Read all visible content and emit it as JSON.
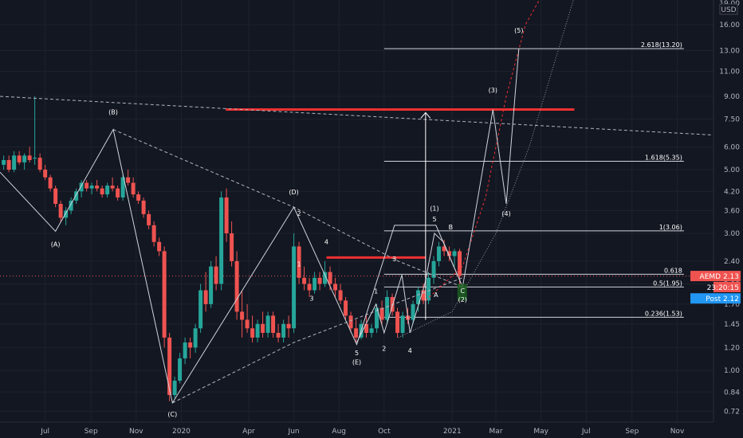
{
  "chart_data": {
    "type": "candlestick",
    "symbol": "AEMD",
    "currency": "USD",
    "y_scale": "log",
    "ylim": [
      0.66,
      19.5
    ],
    "y_ticks": [
      0.72,
      0.84,
      1.0,
      1.2,
      1.45,
      1.7,
      2.0,
      2.4,
      3.0,
      3.6,
      4.2,
      5.0,
      6.0,
      7.5,
      9.0,
      11.0,
      13.0,
      16.0
    ],
    "y_tick_labels": [
      "0.72",
      "0.84",
      "1.00",
      "1.20",
      "1.45",
      "1.70",
      "2.00",
      "2.40",
      "3.00",
      "3.60",
      "4.20",
      "5.00",
      "6.00",
      "7.50",
      "9.00",
      "11.00",
      "13.00",
      "16.00"
    ],
    "top_tick_label": "19.00",
    "x_range": [
      "2019-05-01",
      "2021-12-20"
    ],
    "x_ticks": [
      {
        "date": "2019-07-01",
        "label": "Jul"
      },
      {
        "date": "2019-09-01",
        "label": "Sep"
      },
      {
        "date": "2019-11-01",
        "label": "Nov"
      },
      {
        "date": "2020-01-01",
        "label": "2020"
      },
      {
        "date": "2020-04-01",
        "label": "Apr"
      },
      {
        "date": "2020-06-01",
        "label": "Jun"
      },
      {
        "date": "2020-08-01",
        "label": "Aug"
      },
      {
        "date": "2020-10-01",
        "label": "Oct"
      },
      {
        "date": "2021-01-01",
        "label": "2021"
      },
      {
        "date": "2021-03-01",
        "label": "Mar"
      },
      {
        "date": "2021-05-01",
        "label": "May"
      },
      {
        "date": "2021-07-01",
        "label": "Jul"
      },
      {
        "date": "2021-09-01",
        "label": "Sep"
      },
      {
        "date": "2021-11-01",
        "label": "Nov"
      }
    ],
    "candles": [
      [
        "2019-05-06",
        5.2,
        5.6,
        5.0,
        5.4
      ],
      [
        "2019-05-13",
        5.4,
        5.6,
        4.9,
        5.0
      ],
      [
        "2019-05-20",
        5.0,
        5.8,
        4.9,
        5.6
      ],
      [
        "2019-05-27",
        5.6,
        5.8,
        5.2,
        5.3
      ],
      [
        "2019-06-03",
        5.3,
        5.7,
        5.0,
        5.6
      ],
      [
        "2019-06-10",
        5.6,
        6.0,
        5.3,
        5.4
      ],
      [
        "2019-06-17",
        5.5,
        9.0,
        5.2,
        5.5
      ],
      [
        "2019-06-24",
        5.5,
        5.7,
        4.9,
        5.0
      ],
      [
        "2019-07-01",
        5.0,
        5.2,
        4.6,
        4.7
      ],
      [
        "2019-07-08",
        4.7,
        4.8,
        4.2,
        4.3
      ],
      [
        "2019-07-15",
        4.3,
        4.4,
        3.7,
        3.8
      ],
      [
        "2019-07-22",
        3.8,
        3.9,
        3.3,
        3.4
      ],
      [
        "2019-07-29",
        3.4,
        3.7,
        3.2,
        3.6
      ],
      [
        "2019-08-05",
        3.6,
        4.0,
        3.5,
        3.9
      ],
      [
        "2019-08-12",
        3.9,
        4.3,
        3.8,
        4.2
      ],
      [
        "2019-08-19",
        4.2,
        4.6,
        4.0,
        4.5
      ],
      [
        "2019-08-26",
        4.5,
        4.6,
        4.2,
        4.3
      ],
      [
        "2019-09-02",
        4.3,
        4.5,
        4.1,
        4.4
      ],
      [
        "2019-09-09",
        4.4,
        4.6,
        4.2,
        4.3
      ],
      [
        "2019-09-16",
        4.3,
        4.4,
        4.0,
        4.1
      ],
      [
        "2019-09-23",
        4.1,
        4.5,
        4.0,
        4.4
      ],
      [
        "2019-09-30",
        4.4,
        4.7,
        4.2,
        4.3
      ],
      [
        "2019-10-07",
        4.3,
        4.4,
        3.9,
        4.0
      ],
      [
        "2019-10-14",
        4.0,
        4.8,
        3.9,
        4.7
      ],
      [
        "2019-10-21",
        4.7,
        5.0,
        4.4,
        4.5
      ],
      [
        "2019-10-28",
        4.5,
        4.7,
        4.0,
        4.1
      ],
      [
        "2019-11-04",
        4.1,
        4.2,
        3.8,
        3.9
      ],
      [
        "2019-11-11",
        3.9,
        4.0,
        3.4,
        3.5
      ],
      [
        "2019-11-18",
        3.5,
        3.6,
        3.1,
        3.2
      ],
      [
        "2019-11-25",
        3.2,
        3.3,
        2.7,
        2.8
      ],
      [
        "2019-12-02",
        2.8,
        2.9,
        2.5,
        2.6
      ],
      [
        "2019-12-09",
        2.6,
        2.7,
        1.2,
        1.3
      ],
      [
        "2019-12-16",
        1.3,
        1.35,
        0.78,
        0.82
      ],
      [
        "2019-12-23",
        0.82,
        0.95,
        0.8,
        0.92
      ],
      [
        "2019-12-30",
        0.92,
        1.15,
        0.9,
        1.1
      ],
      [
        "2020-01-06",
        1.1,
        1.3,
        1.05,
        1.25
      ],
      [
        "2020-01-13",
        1.25,
        1.3,
        1.1,
        1.2
      ],
      [
        "2020-01-20",
        1.2,
        1.45,
        1.15,
        1.4
      ],
      [
        "2020-01-27",
        1.4,
        2.0,
        1.35,
        1.9
      ],
      [
        "2020-02-03",
        1.9,
        2.2,
        1.6,
        1.7
      ],
      [
        "2020-02-10",
        1.7,
        2.4,
        1.65,
        2.3
      ],
      [
        "2020-02-17",
        2.3,
        2.5,
        1.9,
        2.0
      ],
      [
        "2020-02-24",
        2.0,
        4.2,
        1.9,
        4.0
      ],
      [
        "2020-03-02",
        4.0,
        4.3,
        2.8,
        3.0
      ],
      [
        "2020-03-09",
        3.0,
        3.3,
        2.3,
        2.4
      ],
      [
        "2020-03-16",
        2.4,
        2.6,
        1.5,
        1.6
      ],
      [
        "2020-03-23",
        1.6,
        1.9,
        1.3,
        1.5
      ],
      [
        "2020-03-30",
        1.5,
        1.7,
        1.35,
        1.4
      ],
      [
        "2020-04-06",
        1.4,
        1.55,
        1.25,
        1.3
      ],
      [
        "2020-04-13",
        1.3,
        1.5,
        1.25,
        1.45
      ],
      [
        "2020-04-20",
        1.45,
        1.6,
        1.3,
        1.35
      ],
      [
        "2020-04-27",
        1.35,
        1.6,
        1.3,
        1.55
      ],
      [
        "2020-05-04",
        1.55,
        1.6,
        1.3,
        1.35
      ],
      [
        "2020-05-11",
        1.35,
        1.45,
        1.25,
        1.3
      ],
      [
        "2020-05-18",
        1.3,
        1.5,
        1.25,
        1.45
      ],
      [
        "2020-05-25",
        1.45,
        1.55,
        1.3,
        1.4
      ],
      [
        "2020-06-01",
        1.4,
        3.0,
        1.35,
        2.7
      ],
      [
        "2020-06-08",
        2.7,
        2.8,
        2.0,
        2.1
      ],
      [
        "2020-06-15",
        2.1,
        2.3,
        1.9,
        2.0
      ],
      [
        "2020-06-22",
        2.0,
        2.1,
        1.8,
        1.9
      ],
      [
        "2020-06-29",
        1.9,
        2.2,
        1.85,
        2.1
      ],
      [
        "2020-07-06",
        2.1,
        2.2,
        1.9,
        2.0
      ],
      [
        "2020-07-13",
        2.0,
        2.4,
        1.95,
        2.2
      ],
      [
        "2020-07-20",
        2.2,
        2.3,
        1.9,
        2.0
      ],
      [
        "2020-07-27",
        2.0,
        2.1,
        1.8,
        1.9
      ],
      [
        "2020-08-03",
        1.9,
        2.0,
        1.7,
        1.75
      ],
      [
        "2020-08-10",
        1.75,
        1.8,
        1.5,
        1.55
      ],
      [
        "2020-08-17",
        1.55,
        1.6,
        1.35,
        1.4
      ],
      [
        "2020-08-24",
        1.4,
        1.5,
        1.25,
        1.3
      ],
      [
        "2020-08-31",
        1.3,
        1.5,
        1.28,
        1.45
      ],
      [
        "2020-09-07",
        1.45,
        1.55,
        1.3,
        1.35
      ],
      [
        "2020-09-14",
        1.35,
        1.45,
        1.3,
        1.4
      ],
      [
        "2020-09-21",
        1.4,
        1.7,
        1.35,
        1.65
      ],
      [
        "2020-09-28",
        1.65,
        1.75,
        1.45,
        1.5
      ],
      [
        "2020-10-05",
        1.5,
        1.9,
        1.45,
        1.8
      ],
      [
        "2020-10-12",
        1.8,
        1.85,
        1.55,
        1.6
      ],
      [
        "2020-10-19",
        1.6,
        1.65,
        1.3,
        1.35
      ],
      [
        "2020-10-26",
        1.35,
        1.6,
        1.3,
        1.55
      ],
      [
        "2020-11-02",
        1.55,
        1.65,
        1.45,
        1.5
      ],
      [
        "2020-11-09",
        1.5,
        1.75,
        1.45,
        1.7
      ],
      [
        "2020-11-16",
        1.7,
        1.95,
        1.6,
        1.9
      ],
      [
        "2020-11-23",
        1.9,
        2.0,
        1.7,
        1.75
      ],
      [
        "2020-11-30",
        1.75,
        2.2,
        1.7,
        2.1
      ],
      [
        "2020-12-07",
        2.1,
        2.5,
        2.0,
        2.4
      ],
      [
        "2020-12-14",
        2.4,
        2.8,
        2.3,
        2.7
      ],
      [
        "2020-12-21",
        2.7,
        2.85,
        2.5,
        2.6
      ],
      [
        "2020-12-28",
        2.6,
        2.7,
        2.4,
        2.5
      ],
      [
        "2021-01-04",
        2.5,
        2.65,
        2.3,
        2.6
      ],
      [
        "2021-01-11",
        2.6,
        2.65,
        1.95,
        2.13
      ]
    ],
    "resistance_lines": [
      {
        "start": [
          "2020-03-01",
          8.1
        ],
        "end": [
          "2021-06-15",
          8.1
        ],
        "color": "#ef3030"
      },
      {
        "start": [
          "2020-07-15",
          2.47
        ],
        "end": [
          "2020-11-26",
          2.47
        ],
        "color": "#ef3030"
      }
    ],
    "fib_levels": [
      {
        "label": "2.618(13.20)",
        "value": 13.2,
        "from": "2020-10-01",
        "to": "2021-11-10"
      },
      {
        "label": "1.618(5.35)",
        "value": 5.35,
        "from": "2020-10-01",
        "to": "2021-11-10"
      },
      {
        "label": "1(3.06)",
        "value": 3.06,
        "from": "2020-10-01",
        "to": "2021-11-10"
      },
      {
        "label": "0.618",
        "value": 2.16,
        "from": "2020-10-01",
        "to": "2021-11-10"
      },
      {
        "label": "0.5(1.95)",
        "value": 1.95,
        "from": "2020-10-01",
        "to": "2021-11-10"
      },
      {
        "label": "0.236(1.53)",
        "value": 1.53,
        "from": "2020-10-01",
        "to": "2021-11-10"
      }
    ],
    "trend_lines": [
      {
        "points": [
          [
            "2019-05-01",
            9.0
          ],
          [
            "2021-12-20",
            6.6
          ]
        ],
        "style": "dashed"
      },
      {
        "points": [
          [
            "2019-10-01",
            6.9
          ],
          [
            "2020-06-01",
            3.7
          ],
          [
            "2020-10-20",
            2.4
          ],
          [
            "2021-01-15",
            1.95
          ]
        ],
        "style": "dashed"
      },
      {
        "points": [
          [
            "2019-12-20",
            0.77
          ],
          [
            "2020-06-01",
            1.25
          ],
          [
            "2021-01-15",
            2.1
          ]
        ],
        "style": "dashed"
      }
    ],
    "wave_path": [
      [
        "2019-05-01",
        4.9
      ],
      [
        "2019-07-15",
        3.05
      ],
      [
        "2019-10-01",
        6.9
      ],
      [
        "2019-12-20",
        0.77
      ],
      [
        "2020-06-01",
        3.7
      ],
      [
        "2020-08-25",
        1.23
      ],
      [
        "2020-10-15",
        3.2
      ],
      [
        "2020-12-10",
        3.2
      ],
      [
        "2021-01-15",
        1.95
      ],
      [
        "2021-02-25",
        8.1
      ],
      [
        "2021-03-15",
        3.8
      ],
      [
        "2021-04-01",
        13.2
      ]
    ],
    "sub_wave_path": [
      [
        "2020-08-25",
        1.25
      ],
      [
        "2020-09-20",
        1.7
      ],
      [
        "2020-10-01",
        1.35
      ],
      [
        "2020-10-25",
        2.15
      ],
      [
        "2020-11-05",
        1.35
      ],
      [
        "2020-11-25",
        2.0
      ],
      [
        "2020-12-08",
        3.0
      ],
      [
        "2020-12-20",
        2.8
      ],
      [
        "2021-01-15",
        1.95
      ]
    ],
    "projection_arrow": {
      "from": [
        "2020-11-26",
        1.5
      ],
      "to": [
        "2020-11-26",
        7.9
      ]
    },
    "curve_red": [
      [
        "2020-11-26",
        1.75
      ],
      [
        "2021-01-15",
        2.3
      ],
      [
        "2021-02-15",
        4.0
      ],
      [
        "2021-03-15",
        9.0
      ],
      [
        "2021-04-10",
        16.0
      ],
      [
        "2021-05-01",
        20.0
      ]
    ],
    "curve_gray": [
      [
        "2020-10-20",
        1.3
      ],
      [
        "2021-01-01",
        1.6
      ],
      [
        "2021-03-01",
        3.0
      ],
      [
        "2021-04-15",
        6.0
      ],
      [
        "2021-05-20",
        12.0
      ],
      [
        "2021-06-15",
        20.0
      ]
    ],
    "wave_labels": [
      {
        "text": "(A)",
        "x": "2019-07-15",
        "y": 2.7
      },
      {
        "text": "(B)",
        "x": "2019-10-01",
        "y": 7.8
      },
      {
        "text": "(C)",
        "x": "2019-12-20",
        "y": 0.69
      },
      {
        "text": "(D)",
        "x": "2020-06-01",
        "y": 4.1
      },
      {
        "text": "2",
        "x": "2020-06-08",
        "y": 3.45
      },
      {
        "text": "1",
        "x": "2020-06-08",
        "y": 2.3
      },
      {
        "text": "3",
        "x": "2020-06-25",
        "y": 1.75
      },
      {
        "text": "4",
        "x": "2020-07-15",
        "y": 2.75
      },
      {
        "text": "5",
        "x": "2020-08-25",
        "y": 1.13
      },
      {
        "text": "(E)",
        "x": "2020-08-25",
        "y": 1.05
      },
      {
        "text": "1",
        "x": "2020-09-20",
        "y": 1.85
      },
      {
        "text": "2",
        "x": "2020-10-01",
        "y": 1.17
      },
      {
        "text": "3",
        "x": "2020-10-15",
        "y": 2.4
      },
      {
        "text": "4",
        "x": "2020-11-05",
        "y": 1.15
      },
      {
        "text": "(1)",
        "x": "2020-12-08",
        "y": 3.6
      },
      {
        "text": "5",
        "x": "2020-12-08",
        "y": 3.3
      },
      {
        "text": "A",
        "x": "2020-12-10",
        "y": 1.8
      },
      {
        "text": "B",
        "x": "2020-12-30",
        "y": 3.1
      },
      {
        "text": "C",
        "x": "2021-01-15",
        "y": 1.86
      },
      {
        "text": "(2)",
        "x": "2021-01-15",
        "y": 1.73
      },
      {
        "text": "(3)",
        "x": "2021-02-25",
        "y": 9.3
      },
      {
        "text": "(4)",
        "x": "2021-03-15",
        "y": 3.45
      },
      {
        "text": "(5)",
        "x": "2021-04-01",
        "y": 15.0
      }
    ],
    "price_badges": [
      {
        "label": "AEMD",
        "value": "2.13",
        "price": 2.13,
        "color": "#ef5350"
      },
      {
        "label": "",
        "value": "23:20:15",
        "price": 1.95,
        "color": "#ef5350"
      },
      {
        "label": "Post",
        "value": "2.12",
        "price": 1.78,
        "color": "#2196f3"
      }
    ],
    "last_price_line": 2.13
  }
}
